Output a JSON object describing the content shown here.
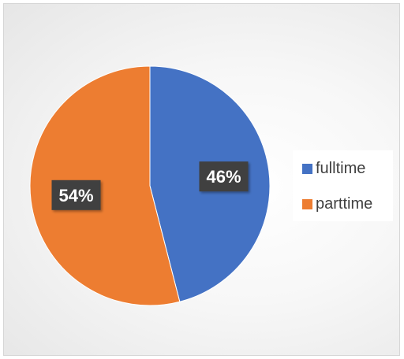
{
  "colors": {
    "fulltime": "#4472C4",
    "parttime": "#ED7D31",
    "label_bg": "#404040",
    "label_text": "#ffffff"
  },
  "chart_data": {
    "type": "pie",
    "categories": [
      "fulltime",
      "parttime"
    ],
    "values": [
      46,
      54
    ],
    "data_labels": [
      "46%",
      "54%"
    ],
    "legend": [
      "fulltime",
      "parttime"
    ],
    "legend_position": "right",
    "start_angle": "top",
    "direction": "clockwise",
    "title": ""
  }
}
